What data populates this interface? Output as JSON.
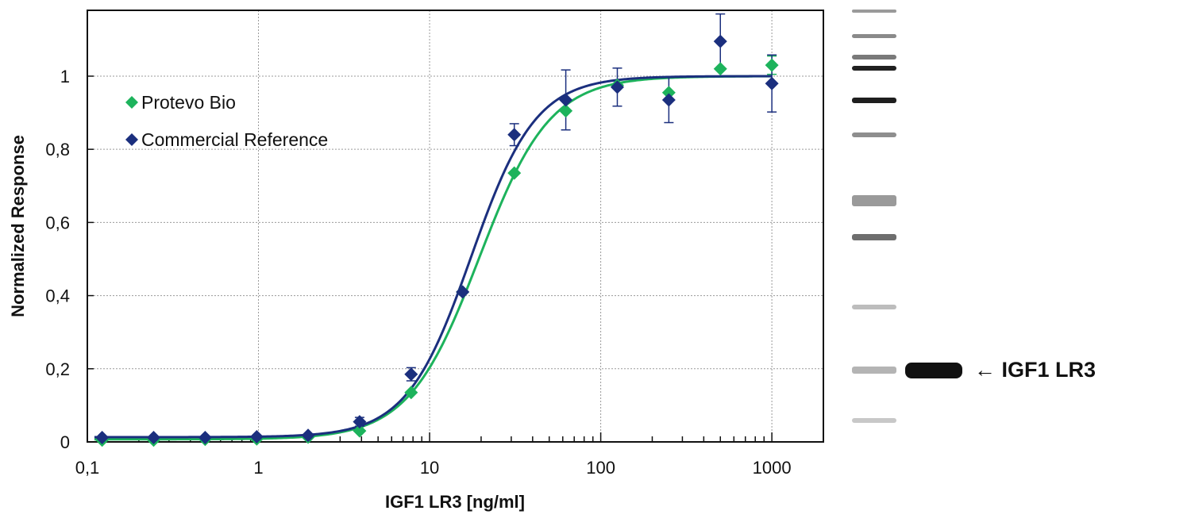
{
  "chart_data": {
    "type": "scatter",
    "xlabel": "IGF1 LR3 [ng/ml]",
    "ylabel": "Normalized Response",
    "x_scale": "log",
    "xlim": [
      0.1,
      2000
    ],
    "ylim": [
      0,
      1.18
    ],
    "x_ticks": [
      0.1,
      1,
      10,
      100,
      1000
    ],
    "x_tick_labels": [
      "0,1",
      "1",
      "10",
      "100",
      "1000"
    ],
    "y_ticks": [
      0,
      0.2,
      0.4,
      0.6,
      0.8,
      1
    ],
    "y_tick_labels": [
      "0",
      "0,2",
      "0,4",
      "0,6",
      "0,8",
      "1"
    ],
    "grid": true,
    "legend_position": "top-left",
    "series": [
      {
        "name": "Protevo Bio",
        "color": "#1db35c",
        "marker": "diamond",
        "x": [
          0.122,
          0.244,
          0.488,
          0.977,
          1.95,
          3.9,
          7.8,
          15.6,
          31.25,
          62.5,
          125,
          250,
          500,
          1000
        ],
        "y": [
          0.005,
          0.005,
          0.007,
          0.008,
          0.013,
          0.03,
          0.135,
          0.41,
          0.735,
          0.905,
          0.975,
          0.955,
          1.02,
          1.03
        ],
        "error": [
          0,
          0,
          0,
          0,
          0,
          0,
          0,
          0,
          0,
          0,
          0,
          0,
          0,
          0.025
        ],
        "fit": {
          "bottom": 0.007,
          "top": 1.0,
          "ec50": 19.5,
          "hill": 2.1
        }
      },
      {
        "name": "Commercial Reference",
        "color": "#1b2f7e",
        "marker": "diamond",
        "x": [
          0.122,
          0.244,
          0.488,
          0.977,
          1.95,
          3.9,
          7.8,
          15.6,
          31.25,
          62.5,
          125,
          250,
          500,
          1000
        ],
        "y": [
          0.012,
          0.012,
          0.012,
          0.014,
          0.018,
          0.055,
          0.185,
          0.41,
          0.84,
          0.935,
          0.97,
          0.935,
          1.095,
          0.98
        ],
        "error": [
          0,
          0,
          0,
          0,
          0,
          0.012,
          0.018,
          0,
          0.03,
          0.082,
          0.052,
          0.062,
          0.075,
          0.078
        ],
        "fit": {
          "bottom": 0.013,
          "top": 1.0,
          "ec50": 17.5,
          "hill": 2.3
        }
      }
    ]
  },
  "gel": {
    "label": "← IGF1 LR3"
  }
}
